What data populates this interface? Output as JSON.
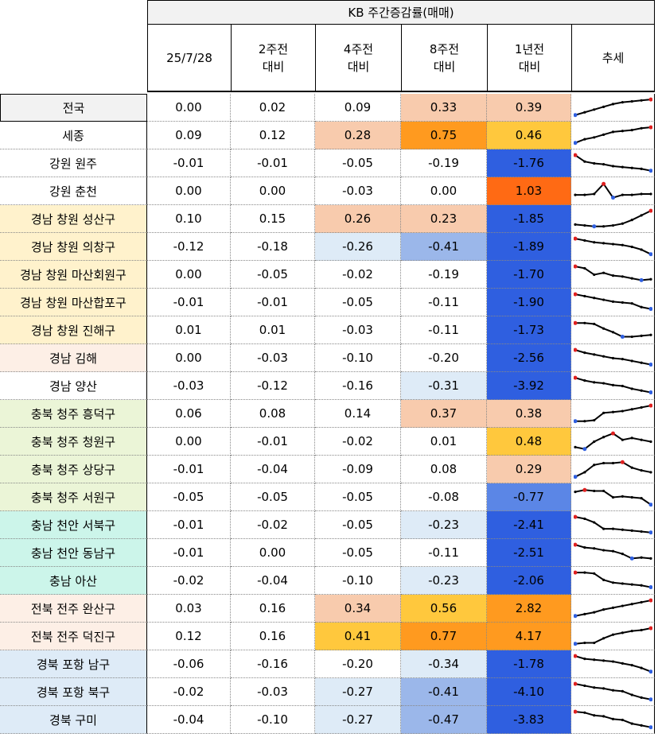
{
  "header": {
    "title": "KB 주간증감률(매매)",
    "columns": [
      [
        "25/7/28"
      ],
      [
        "2주전",
        "대비"
      ],
      [
        "4주전",
        "대비"
      ],
      [
        "8주전",
        "대비"
      ],
      [
        "1년전",
        "대비"
      ],
      [
        "추세"
      ]
    ]
  },
  "colors": {
    "peach": "#f8cbad",
    "orange": "#ff9a1f",
    "yellow": "#ffc83d",
    "deeporange": "#ff6a14",
    "blue": "#2f5fe0",
    "midblue": "#5b86e6",
    "lightblue1": "#deebf7",
    "lightblue2": "#9bb7ea"
  },
  "rows": [
    {
      "name": "전국",
      "bg": "#f2f2f2",
      "vals": [
        "0.00",
        "0.02",
        "0.09",
        "0.33",
        "0.39"
      ],
      "cbg": [
        "",
        "",
        "",
        "#f8cbad",
        "#f8cbad"
      ],
      "trend": [
        0.1,
        0.25,
        0.4,
        0.55,
        0.7,
        0.8,
        0.85,
        0.9,
        0.95
      ]
    },
    {
      "name": "세종",
      "bg": "#ffffff",
      "vals": [
        "0.09",
        "0.12",
        "0.28",
        "0.75",
        "0.46"
      ],
      "cbg": [
        "",
        "",
        "#f8cbad",
        "#ff9a1f",
        "#ffc83d"
      ],
      "trend": [
        0.1,
        0.3,
        0.4,
        0.55,
        0.7,
        0.75,
        0.8,
        0.9,
        0.95
      ]
    },
    {
      "name": "강원 원주",
      "bg": "#ffffff",
      "vals": [
        "-0.01",
        "-0.01",
        "-0.05",
        "-0.19",
        "-1.76"
      ],
      "cbg": [
        "",
        "",
        "",
        "",
        "#2f5fe0"
      ],
      "trend": [
        0.95,
        0.6,
        0.5,
        0.45,
        0.35,
        0.3,
        0.25,
        0.2,
        0.1
      ]
    },
    {
      "name": "강원 춘천",
      "bg": "#ffffff",
      "vals": [
        "0.00",
        "0.00",
        "-0.03",
        "0.00",
        "1.03"
      ],
      "cbg": [
        "",
        "",
        "",
        "",
        "#ff6a14"
      ],
      "trend": [
        0.3,
        0.3,
        0.35,
        0.9,
        0.15,
        0.3,
        0.3,
        0.35,
        0.35
      ]
    },
    {
      "name": "경남 창원 성산구",
      "bg": "#fff2cc",
      "vals": [
        "0.10",
        "0.15",
        "0.26",
        "0.23",
        "-1.85"
      ],
      "cbg": [
        "",
        "",
        "#f8cbad",
        "#f8cbad",
        "#2f5fe0"
      ],
      "trend": [
        0.2,
        0.15,
        0.1,
        0.1,
        0.15,
        0.25,
        0.45,
        0.7,
        0.95
      ]
    },
    {
      "name": "경남 창원 의창구",
      "bg": "#fff2cc",
      "vals": [
        "-0.12",
        "-0.18",
        "-0.26",
        "-0.41",
        "-1.89"
      ],
      "cbg": [
        "",
        "",
        "#deebf7",
        "#9bb7ea",
        "#2f5fe0"
      ],
      "trend": [
        0.95,
        0.85,
        0.75,
        0.7,
        0.65,
        0.6,
        0.5,
        0.35,
        0.1
      ]
    },
    {
      "name": "경남 창원 마산회원구",
      "bg": "#fff2cc",
      "vals": [
        "0.00",
        "-0.05",
        "-0.02",
        "-0.19",
        "-1.70"
      ],
      "cbg": [
        "",
        "",
        "",
        "",
        "#2f5fe0"
      ],
      "trend": [
        0.95,
        0.85,
        0.5,
        0.6,
        0.45,
        0.4,
        0.3,
        0.2,
        0.25
      ]
    },
    {
      "name": "경남 창원 마산합포구",
      "bg": "#fff2cc",
      "vals": [
        "-0.01",
        "-0.01",
        "-0.05",
        "-0.11",
        "-1.90"
      ],
      "cbg": [
        "",
        "",
        "",
        "",
        "#2f5fe0"
      ],
      "trend": [
        0.95,
        0.85,
        0.75,
        0.65,
        0.55,
        0.5,
        0.45,
        0.25,
        0.15
      ]
    },
    {
      "name": "경남 창원 진해구",
      "bg": "#fff2cc",
      "vals": [
        "0.01",
        "0.01",
        "-0.03",
        "-0.11",
        "-1.73"
      ],
      "cbg": [
        "",
        "",
        "",
        "",
        "#2f5fe0"
      ],
      "trend": [
        0.9,
        0.9,
        0.85,
        0.6,
        0.4,
        0.15,
        0.15,
        0.2,
        0.25
      ]
    },
    {
      "name": "경남 김해",
      "bg": "#fdefe6",
      "vals": [
        "0.00",
        "-0.03",
        "-0.10",
        "-0.20",
        "-2.56"
      ],
      "cbg": [
        "",
        "",
        "",
        "",
        "#2f5fe0"
      ],
      "trend": [
        0.95,
        0.8,
        0.7,
        0.6,
        0.5,
        0.45,
        0.35,
        0.25,
        0.15
      ]
    },
    {
      "name": "경남 양산",
      "bg": "#ffffff",
      "vals": [
        "-0.03",
        "-0.12",
        "-0.16",
        "-0.31",
        "-3.92"
      ],
      "cbg": [
        "",
        "",
        "",
        "#deebf7",
        "#2f5fe0"
      ],
      "trend": [
        0.95,
        0.8,
        0.7,
        0.65,
        0.55,
        0.5,
        0.35,
        0.25,
        0.15
      ]
    },
    {
      "name": "충북 청주 흥덕구",
      "bg": "#ebf5d7",
      "vals": [
        "0.06",
        "0.08",
        "0.14",
        "0.37",
        "0.38"
      ],
      "cbg": [
        "",
        "",
        "",
        "#f8cbad",
        "#f8cbad"
      ],
      "trend": [
        0.1,
        0.1,
        0.15,
        0.55,
        0.6,
        0.65,
        0.75,
        0.85,
        0.95
      ]
    },
    {
      "name": "충북 청주 청원구",
      "bg": "#ebf5d7",
      "vals": [
        "0.00",
        "-0.01",
        "-0.02",
        "0.01",
        "0.48"
      ],
      "cbg": [
        "",
        "",
        "",
        "",
        "#ffc83d"
      ],
      "trend": [
        0.2,
        0.1,
        0.5,
        0.75,
        0.95,
        0.6,
        0.7,
        0.6,
        0.5
      ]
    },
    {
      "name": "충북 청주 상당구",
      "bg": "#ebf5d7",
      "vals": [
        "-0.01",
        "-0.04",
        "-0.09",
        "0.08",
        "0.29"
      ],
      "cbg": [
        "",
        "",
        "",
        "",
        "#f8cbad"
      ],
      "trend": [
        0.1,
        0.35,
        0.75,
        0.85,
        0.85,
        0.9,
        0.6,
        0.45,
        0.35
      ]
    },
    {
      "name": "충북 청주 서원구",
      "bg": "#ebf5d7",
      "vals": [
        "-0.05",
        "-0.05",
        "-0.05",
        "-0.08",
        "-0.77"
      ],
      "cbg": [
        "",
        "",
        "",
        "",
        "#5b86e6"
      ],
      "trend": [
        0.8,
        0.9,
        0.85,
        0.85,
        0.5,
        0.55,
        0.5,
        0.45,
        0.1
      ]
    },
    {
      "name": "충남 천안 서북구",
      "bg": "#ccf5ea",
      "vals": [
        "-0.01",
        "-0.02",
        "-0.05",
        "-0.23",
        "-2.41"
      ],
      "cbg": [
        "",
        "",
        "",
        "#deebf7",
        "#2f5fe0"
      ],
      "trend": [
        0.95,
        0.85,
        0.65,
        0.3,
        0.3,
        0.25,
        0.2,
        0.15,
        0.1
      ]
    },
    {
      "name": "충남 천안 동남구",
      "bg": "#ccf5ea",
      "vals": [
        "-0.01",
        "0.00",
        "-0.05",
        "-0.11",
        "-2.51"
      ],
      "cbg": [
        "",
        "",
        "",
        "",
        "#2f5fe0"
      ],
      "trend": [
        0.95,
        0.8,
        0.75,
        0.65,
        0.6,
        0.45,
        0.2,
        0.25,
        0.2
      ]
    },
    {
      "name": "충남 아산",
      "bg": "#ccf5ea",
      "vals": [
        "-0.02",
        "-0.04",
        "-0.10",
        "-0.23",
        "-2.06"
      ],
      "cbg": [
        "",
        "",
        "",
        "#deebf7",
        "#2f5fe0"
      ],
      "trend": [
        0.95,
        0.95,
        0.9,
        0.55,
        0.4,
        0.35,
        0.3,
        0.25,
        0.15
      ]
    },
    {
      "name": "전북 전주 완산구",
      "bg": "#fdefe6",
      "vals": [
        "0.03",
        "0.16",
        "0.34",
        "0.56",
        "2.82"
      ],
      "cbg": [
        "",
        "",
        "#f8cbad",
        "#ffc83d",
        "#ff9a1f"
      ],
      "trend": [
        0.1,
        0.2,
        0.3,
        0.45,
        0.55,
        0.65,
        0.75,
        0.85,
        0.95
      ]
    },
    {
      "name": "전북 전주 덕진구",
      "bg": "#fdefe6",
      "vals": [
        "0.12",
        "0.16",
        "0.41",
        "0.77",
        "4.17"
      ],
      "cbg": [
        "",
        "",
        "#ffc83d",
        "#ff9a1f",
        "#ff9a1f"
      ],
      "trend": [
        0.1,
        0.15,
        0.15,
        0.4,
        0.6,
        0.7,
        0.8,
        0.85,
        0.95
      ]
    },
    {
      "name": "경북 포항 남구",
      "bg": "#deebf7",
      "vals": [
        "-0.06",
        "-0.16",
        "-0.20",
        "-0.34",
        "-1.78"
      ],
      "cbg": [
        "",
        "",
        "",
        "#deebf7",
        "#2f5fe0"
      ],
      "trend": [
        0.95,
        0.8,
        0.75,
        0.7,
        0.65,
        0.55,
        0.45,
        0.3,
        0.1
      ]
    },
    {
      "name": "경북 포항 북구",
      "bg": "#deebf7",
      "vals": [
        "-0.02",
        "-0.03",
        "-0.27",
        "-0.41",
        "-4.10"
      ],
      "cbg": [
        "",
        "",
        "#deebf7",
        "#9bb7ea",
        "#2f5fe0"
      ],
      "trend": [
        0.95,
        0.85,
        0.75,
        0.7,
        0.6,
        0.55,
        0.35,
        0.2,
        0.1
      ]
    },
    {
      "name": "경북 구미",
      "bg": "#deebf7",
      "vals": [
        "-0.04",
        "-0.10",
        "-0.27",
        "-0.47",
        "-3.83"
      ],
      "cbg": [
        "",
        "",
        "#deebf7",
        "#9bb7ea",
        "#2f5fe0"
      ],
      "trend": [
        0.95,
        0.9,
        0.75,
        0.7,
        0.55,
        0.5,
        0.3,
        0.2,
        0.1
      ]
    }
  ]
}
